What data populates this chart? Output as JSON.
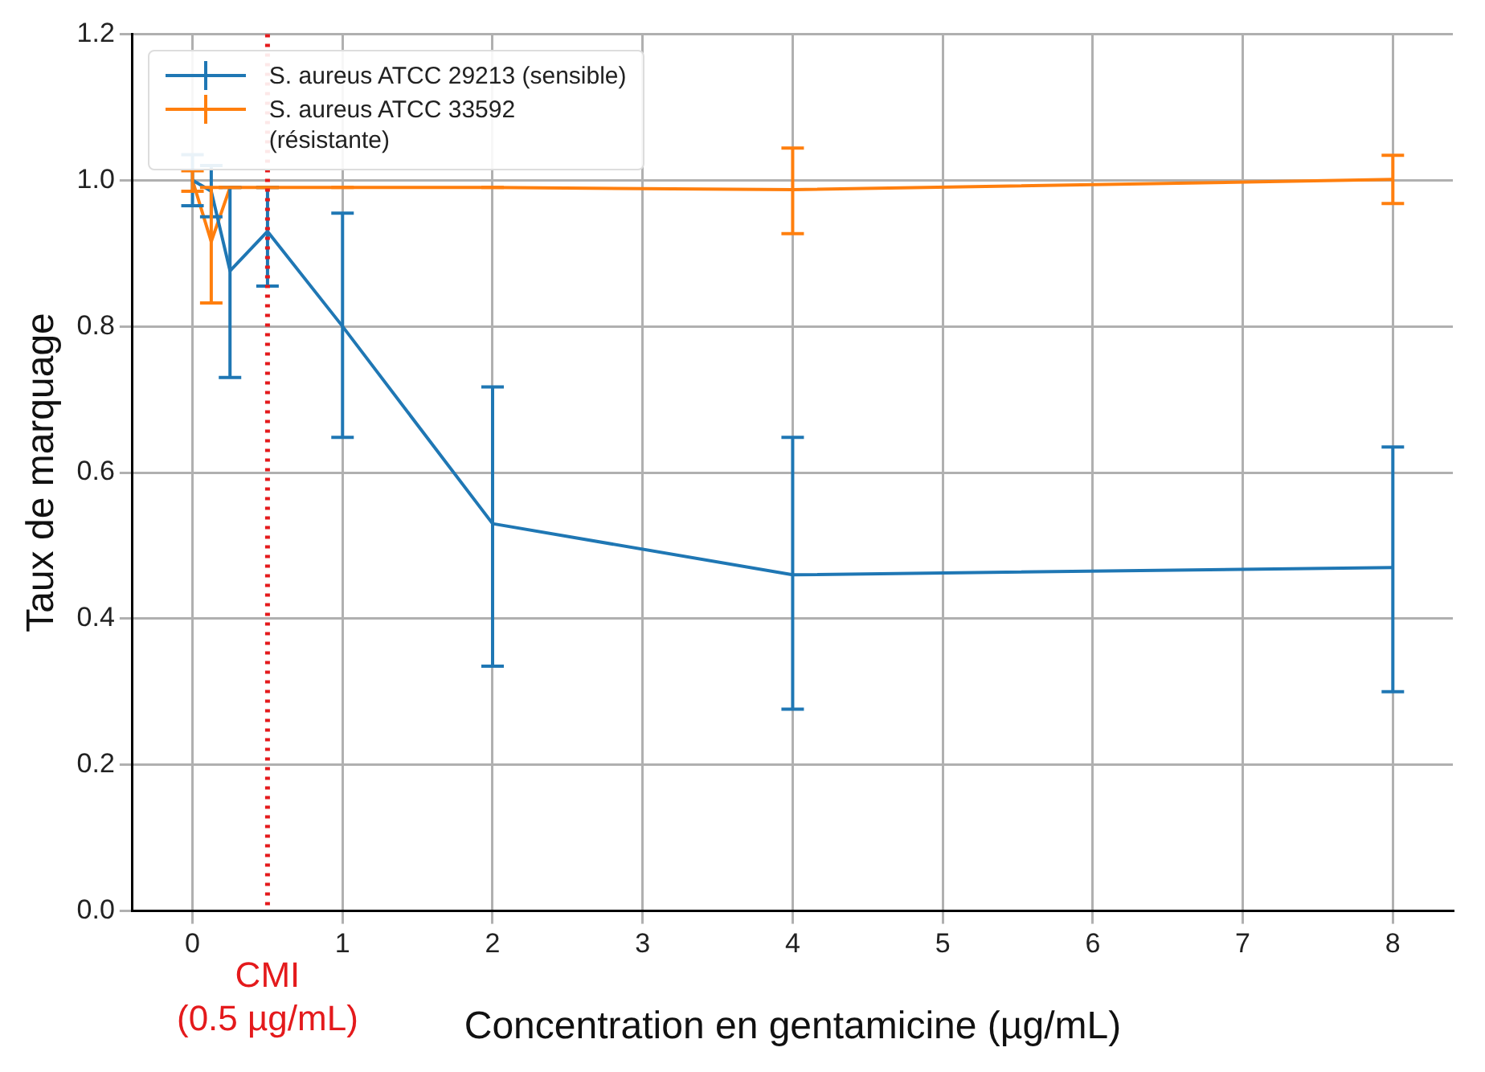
{
  "chart_data": {
    "type": "line",
    "xlabel": "Concentration en gentamicine (µg/mL)",
    "ylabel": "Taux de marquage",
    "x": [
      0,
      0.125,
      0.25,
      0.5,
      1,
      2,
      4,
      8
    ],
    "series": [
      {
        "name": "S. aureus ATCC 29213 (sensible)",
        "color": "#1f77b4",
        "values": [
          1.0,
          0.985,
          0.876,
          0.93,
          0.8,
          0.53,
          0.46,
          0.47
        ],
        "errors": [
          [
            0.965,
            1.035
          ],
          [
            0.95,
            1.02
          ],
          [
            0.73,
            0.99
          ],
          [
            0.855,
            0.99
          ],
          [
            0.648,
            0.955
          ],
          [
            0.335,
            0.717
          ],
          [
            0.276,
            0.648
          ],
          [
            0.3,
            0.635
          ]
        ]
      },
      {
        "name": "S. aureus ATCC 33592\n(résistante)",
        "color": "#ff7f0e",
        "values": [
          1.0,
          0.916,
          0.99,
          0.99,
          0.99,
          0.99,
          0.987,
          1.001
        ],
        "errors": [
          [
            0.985,
            1.013
          ],
          [
            0.832,
            0.99
          ],
          [
            0.99,
            0.99
          ],
          [
            0.99,
            0.99
          ],
          [
            0.99,
            0.99
          ],
          [
            0.99,
            0.99
          ],
          [
            0.927,
            1.044
          ],
          [
            0.968,
            1.034
          ]
        ]
      }
    ],
    "xlim": [
      -0.4,
      8.4
    ],
    "xticks": [
      0,
      1,
      2,
      3,
      4,
      5,
      6,
      7,
      8
    ],
    "ylim": [
      0,
      1.2
    ],
    "yticks": [
      {
        "value": 0,
        "label": "0.0"
      },
      0.2,
      0.4,
      0.6,
      0.8,
      {
        "value": 1,
        "label": "1.0"
      },
      1.2
    ],
    "ref_lines": [
      {
        "axis": "x",
        "value": 0.5,
        "label": "CMI\n(0.5 µg/mL)",
        "color": "#e41a1c",
        "line_style": "dotted"
      }
    ],
    "grid": true,
    "legend": "top left",
    "marker": "none",
    "line_style": "solid"
  }
}
